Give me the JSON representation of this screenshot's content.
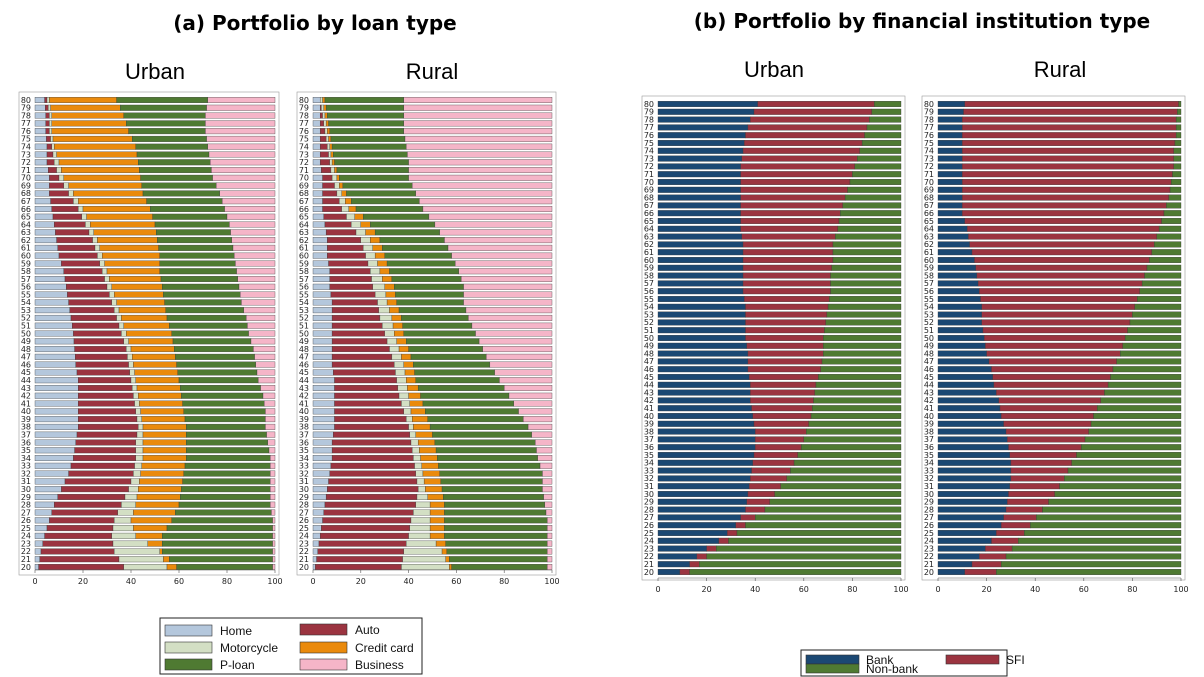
{
  "panels": [
    {
      "title": "(a) Portfolio by loan type",
      "legend": [
        "Home",
        "Auto",
        "Motorcycle",
        "Credit card",
        "P-loan",
        "Business"
      ]
    },
    {
      "title": "(b) Portfolio by financial institution type",
      "legend": [
        "Bank",
        "SFI",
        "Non-bank"
      ]
    }
  ],
  "colors": {
    "Home": "#b4c7dc",
    "Motorcycle": "#d3dfc4",
    "P-loan": "#4f7a32",
    "Auto": "#9b3440",
    "Credit card": "#ea8a0c",
    "Business": "#f5b5c8",
    "Bank": "#1b4873",
    "SFI": "#9b3440",
    "Non-bank": "#4f7a32"
  },
  "chart_data": [
    {
      "type": "bar",
      "orientation": "horizontal-stacked-100",
      "panel": "(a)",
      "title": "Urban",
      "categories_range": [
        20,
        80
      ],
      "xlim": [
        0,
        100
      ],
      "x_ticks": [
        0,
        20,
        40,
        60,
        80,
        100
      ],
      "series_order": [
        "Home",
        "Auto",
        "Motorcycle",
        "Credit card",
        "P-loan",
        "Business"
      ],
      "cumulative_knots": {
        "ages": [
          20,
          22,
          24,
          26,
          28,
          30,
          32,
          34,
          36,
          38,
          40,
          42,
          44,
          46,
          48,
          50,
          52,
          54,
          56,
          58,
          60,
          62,
          64,
          66,
          68,
          70,
          72,
          74,
          76,
          78,
          80
        ],
        "Home": [
          1.5,
          2.5,
          4,
          6,
          8,
          11,
          14,
          16,
          17,
          18,
          18,
          18,
          18,
          17,
          16.5,
          16,
          15,
          14,
          13,
          12,
          10,
          9,
          8,
          7,
          6,
          6,
          5,
          5,
          4.5,
          4.5,
          4
        ],
        "Auto": [
          37,
          33,
          32,
          33,
          36,
          39,
          41,
          42,
          42,
          43,
          42,
          41,
          40,
          39,
          38,
          36,
          34,
          32,
          30,
          28,
          26,
          24,
          21,
          18,
          14,
          10,
          8,
          7,
          6,
          6,
          5
        ],
        "Motorcycle": [
          55,
          52,
          42,
          40,
          42,
          43,
          44,
          45,
          45,
          45,
          44,
          43,
          42,
          41,
          40,
          38,
          36,
          34,
          32,
          30,
          28,
          26,
          23,
          20,
          16,
          12,
          10,
          8,
          7,
          7,
          6
        ],
        "Credit card": [
          59,
          53,
          53,
          57,
          60,
          61,
          62,
          63,
          63,
          63,
          62,
          61,
          60,
          59,
          58,
          57,
          55,
          54,
          53,
          52,
          52,
          51,
          50,
          48,
          45,
          44,
          43,
          42,
          39,
          37,
          34
        ],
        "P-loan": [
          99,
          99,
          99,
          99,
          98,
          98,
          98,
          98,
          97,
          96,
          96,
          95,
          93,
          92,
          91,
          89,
          88,
          86,
          85,
          84,
          83,
          82,
          81,
          79,
          77,
          74,
          73,
          72,
          71,
          71,
          72
        ],
        "Business": [
          100,
          100,
          100,
          100,
          100,
          100,
          100,
          100,
          100,
          100,
          100,
          100,
          100,
          100,
          100,
          100,
          100,
          100,
          100,
          100,
          100,
          100,
          100,
          100,
          100,
          100,
          100,
          100,
          100,
          100,
          100
        ]
      }
    },
    {
      "type": "bar",
      "orientation": "horizontal-stacked-100",
      "panel": "(a)",
      "title": "Rural",
      "categories_range": [
        20,
        80
      ],
      "xlim": [
        0,
        100
      ],
      "x_ticks": [
        0,
        20,
        40,
        60,
        80,
        100
      ],
      "series_order": [
        "Home",
        "Auto",
        "Motorcycle",
        "Credit card",
        "P-loan",
        "Business"
      ],
      "cumulative_knots": {
        "ages": [
          20,
          22,
          24,
          26,
          28,
          30,
          32,
          34,
          36,
          38,
          40,
          42,
          44,
          46,
          48,
          50,
          52,
          54,
          56,
          58,
          60,
          62,
          64,
          66,
          68,
          70,
          72,
          74,
          76,
          78,
          80
        ],
        "Home": [
          1,
          2,
          3,
          4,
          5,
          6,
          7,
          8,
          8,
          9,
          9,
          9,
          9,
          8,
          8,
          8,
          8,
          8,
          7,
          7,
          6,
          6,
          5,
          4,
          4,
          4,
          3,
          3,
          3,
          3,
          3
        ],
        "Auto": [
          37,
          38,
          40,
          41,
          43,
          44,
          43,
          42,
          41,
          40,
          38,
          36,
          35,
          34,
          32,
          30,
          28,
          27,
          25,
          24,
          22,
          20,
          16,
          12,
          10,
          8,
          7,
          6,
          5,
          4,
          3
        ],
        "Motorcycle": [
          57,
          54,
          49,
          49,
          49,
          47,
          46,
          45,
          44,
          42,
          41,
          40,
          39,
          38,
          36,
          34,
          33,
          31,
          30,
          28,
          26,
          24,
          20,
          15,
          12,
          10,
          8,
          7,
          6,
          5,
          4
        ],
        "Credit card": [
          58,
          56,
          55,
          55,
          55,
          54,
          53,
          52,
          51,
          49,
          47,
          45,
          43,
          42,
          40,
          38,
          37,
          35,
          34,
          32,
          30,
          28,
          24,
          18,
          14,
          11,
          9,
          8,
          7,
          6,
          5
        ],
        "P-loan": [
          98,
          98,
          98,
          98,
          97,
          96,
          96,
          94,
          93,
          90,
          86,
          82,
          78,
          74,
          71,
          68,
          65,
          63,
          63,
          61,
          58,
          55,
          51,
          46,
          43,
          40,
          40,
          39,
          38,
          38,
          38
        ],
        "Business": [
          100,
          100,
          100,
          100,
          100,
          100,
          100,
          100,
          100,
          100,
          100,
          100,
          100,
          100,
          100,
          100,
          100,
          100,
          100,
          100,
          100,
          100,
          100,
          100,
          100,
          100,
          100,
          100,
          100,
          100,
          100
        ]
      }
    },
    {
      "type": "bar",
      "orientation": "horizontal-stacked-100",
      "panel": "(b)",
      "title": "Urban",
      "categories_range": [
        20,
        80
      ],
      "xlim": [
        0,
        100
      ],
      "x_ticks": [
        0,
        20,
        40,
        60,
        80,
        100
      ],
      "series_order": [
        "Bank",
        "SFI",
        "Non-bank"
      ],
      "cumulative_knots": {
        "ages": [
          20,
          21,
          22,
          23,
          24,
          26,
          28,
          30,
          32,
          34,
          36,
          38,
          40,
          42,
          44,
          46,
          48,
          50,
          52,
          54,
          56,
          58,
          60,
          62,
          64,
          66,
          68,
          70,
          72,
          74,
          76,
          78,
          80
        ],
        "Bank": [
          9,
          13,
          16,
          20,
          25,
          32,
          36,
          37,
          38,
          39,
          40,
          40,
          39,
          38,
          38,
          37,
          37,
          36,
          36,
          36,
          35,
          35,
          35,
          35,
          34,
          34,
          34,
          34,
          34,
          35,
          36,
          38,
          41
        ],
        "SFI": [
          13,
          17,
          20,
          24,
          29,
          36,
          44,
          48,
          53,
          56,
          59,
          61,
          63,
          64,
          65,
          67,
          68,
          68,
          69,
          70,
          71,
          71,
          72,
          72,
          74,
          75,
          77,
          79,
          81,
          83,
          85,
          87,
          89
        ],
        "Non-bank": [
          100,
          100,
          100,
          100,
          100,
          100,
          100,
          100,
          100,
          100,
          100,
          100,
          100,
          100,
          100,
          100,
          100,
          100,
          100,
          100,
          100,
          100,
          100,
          100,
          100,
          100,
          100,
          100,
          100,
          100,
          100,
          100,
          100
        ]
      }
    },
    {
      "type": "bar",
      "orientation": "horizontal-stacked-100",
      "panel": "(b)",
      "title": "Rural",
      "categories_range": [
        20,
        80
      ],
      "xlim": [
        0,
        100
      ],
      "x_ticks": [
        0,
        20,
        40,
        60,
        80,
        100
      ],
      "series_order": [
        "Bank",
        "SFI",
        "Non-bank"
      ],
      "cumulative_knots": {
        "ages": [
          20,
          22,
          24,
          26,
          28,
          30,
          32,
          34,
          36,
          38,
          40,
          42,
          44,
          46,
          48,
          50,
          52,
          54,
          56,
          58,
          60,
          62,
          64,
          66,
          68,
          70,
          72,
          74,
          76,
          78,
          80
        ],
        "Bank": [
          11,
          17,
          22,
          26,
          28,
          29,
          30,
          30,
          29,
          28,
          26,
          25,
          23,
          22,
          20,
          19,
          18,
          18,
          17,
          16,
          15,
          13,
          12,
          10,
          10,
          10,
          10,
          10,
          10,
          10,
          11
        ],
        "SFI": [
          24,
          28,
          33,
          38,
          43,
          48,
          52,
          55,
          59,
          62,
          64,
          67,
          70,
          72,
          75,
          77,
          79,
          81,
          83,
          85,
          87,
          89,
          91,
          93,
          95,
          96,
          97,
          97,
          98,
          98,
          99
        ],
        "Non-bank": [
          100,
          100,
          100,
          100,
          100,
          100,
          100,
          100,
          100,
          100,
          100,
          100,
          100,
          100,
          100,
          100,
          100,
          100,
          100,
          100,
          100,
          100,
          100,
          100,
          100,
          100,
          100,
          100,
          100,
          100,
          100
        ]
      }
    }
  ]
}
